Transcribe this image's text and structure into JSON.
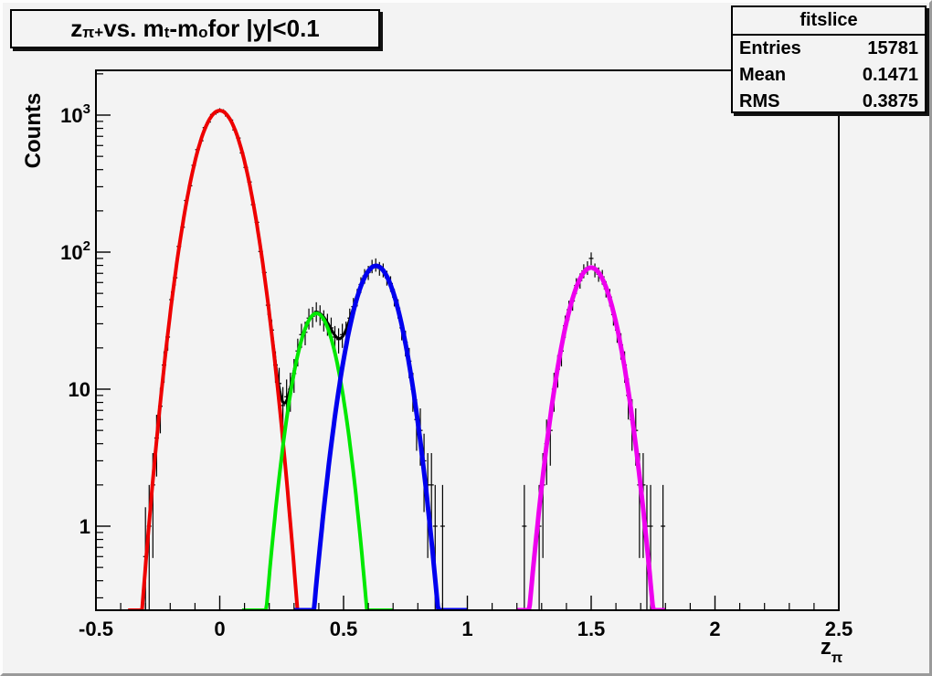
{
  "canvas": {
    "background": "#f3f3f3",
    "bevel_light": "#fdfdfd",
    "bevel_dark": "#9a9a9a"
  },
  "title": {
    "segments": [
      {
        "t": "z"
      },
      {
        "sub": "π+"
      },
      {
        "t": " vs. m"
      },
      {
        "sub": "t"
      },
      {
        "t": "-m"
      },
      {
        "sub": "o"
      },
      {
        "t": " for |y|<0.1"
      }
    ]
  },
  "stats": {
    "title": "fitslice",
    "rows": [
      {
        "label": "Entries",
        "value": "15781"
      },
      {
        "label": "Mean",
        "value": "0.1471"
      },
      {
        "label": "RMS",
        "value": "0.3875"
      }
    ]
  },
  "chart_data": {
    "type": "bar",
    "subtype": "histogram-log-y-with-gaussian-fits",
    "title": "z_{π+} vs. m_t-m_o for |y|<0.1",
    "xlabel_base": "z",
    "xlabel_sub": "π",
    "ylabel": "Counts",
    "x_axis": {
      "range": [
        -0.5,
        2.5
      ],
      "major_ticks": [
        -0.5,
        0,
        0.5,
        1,
        1.5,
        2,
        2.5
      ],
      "tick_labels": [
        "-0.5",
        "0",
        "0.5",
        "1",
        "1.5",
        "2",
        "2.5"
      ],
      "minor_step": 0.1
    },
    "y_axis": {
      "scale": "log",
      "range": [
        0.243,
        2123
      ],
      "major_ticks": [
        1,
        10,
        100,
        1000
      ],
      "tick_labels": [
        {
          "base": "1",
          "exp": ""
        },
        {
          "base": "10",
          "exp": ""
        },
        {
          "base": "10",
          "exp": "2"
        },
        {
          "base": "10",
          "exp": "3"
        }
      ]
    },
    "grid": false,
    "legend": false,
    "bin_width": 0.015,
    "fits": [
      {
        "name": "red-gaussian",
        "color": "#ee0000",
        "amp_log10": 3.033,
        "mean": 0.0,
        "curvature": 37.0,
        "range": [
          -0.37,
          0.33
        ],
        "width": 4
      },
      {
        "name": "green-gaussian",
        "color": "#00e800",
        "amp_log10": 1.553,
        "mean": 0.391,
        "curvature": 52.5,
        "range": [
          0.09,
          0.7
        ],
        "width": 4
      },
      {
        "name": "blue-gaussian",
        "color": "#0000ee",
        "amp_log10": 1.9,
        "mean": 0.631,
        "curvature": 40.0,
        "range": [
          0.3,
          1.0
        ],
        "width": 5
      },
      {
        "name": "magenta-gaussian",
        "color": "#ee00ee",
        "amp_log10": 1.887,
        "mean": 1.5,
        "curvature": 40.0,
        "range": [
          1.2,
          1.8
        ],
        "width": 5
      }
    ],
    "sum_fit": {
      "name": "total-fit",
      "color": "#000000",
      "range": [
        -0.45,
        2.45
      ],
      "width": 3
    },
    "data_points": [
      [
        -0.3,
        0.6
      ],
      [
        -0.285,
        1.0
      ],
      [
        -0.27,
        2.0
      ],
      [
        -0.255,
        4.4
      ],
      [
        -0.24,
        7.5
      ],
      [
        -0.225,
        15
      ],
      [
        -0.21,
        24
      ],
      [
        -0.195,
        45
      ],
      [
        -0.18,
        65
      ],
      [
        -0.165,
        110
      ],
      [
        -0.15,
        152
      ],
      [
        -0.135,
        238
      ],
      [
        -0.12,
        305
      ],
      [
        -0.105,
        430
      ],
      [
        -0.09,
        560
      ],
      [
        -0.075,
        650
      ],
      [
        -0.06,
        810
      ],
      [
        -0.045,
        890
      ],
      [
        -0.03,
        1010
      ],
      [
        -0.015,
        1040
      ],
      [
        0.0,
        1090
      ],
      [
        0.015,
        1070
      ],
      [
        0.03,
        985
      ],
      [
        0.045,
        920
      ],
      [
        0.06,
        780
      ],
      [
        0.075,
        680
      ],
      [
        0.09,
        530
      ],
      [
        0.105,
        415
      ],
      [
        0.12,
        325
      ],
      [
        0.135,
        222
      ],
      [
        0.15,
        165
      ],
      [
        0.165,
        101
      ],
      [
        0.18,
        71
      ],
      [
        0.195,
        41
      ],
      [
        0.21,
        27
      ],
      [
        0.225,
        15
      ],
      [
        0.24,
        11
      ],
      [
        0.255,
        7.6
      ],
      [
        0.27,
        8.8
      ],
      [
        0.285,
        10
      ],
      [
        0.3,
        13
      ],
      [
        0.315,
        19
      ],
      [
        0.33,
        25
      ],
      [
        0.345,
        26
      ],
      [
        0.36,
        33
      ],
      [
        0.375,
        34
      ],
      [
        0.39,
        37
      ],
      [
        0.405,
        35
      ],
      [
        0.42,
        32
      ],
      [
        0.435,
        30
      ],
      [
        0.45,
        28
      ],
      [
        0.465,
        24
      ],
      [
        0.48,
        23
      ],
      [
        0.495,
        25
      ],
      [
        0.51,
        26
      ],
      [
        0.525,
        33
      ],
      [
        0.54,
        40
      ],
      [
        0.555,
        47
      ],
      [
        0.57,
        58
      ],
      [
        0.585,
        67
      ],
      [
        0.6,
        71
      ],
      [
        0.615,
        79
      ],
      [
        0.63,
        81
      ],
      [
        0.645,
        76
      ],
      [
        0.66,
        74
      ],
      [
        0.675,
        65
      ],
      [
        0.69,
        59
      ],
      [
        0.705,
        47
      ],
      [
        0.72,
        39
      ],
      [
        0.735,
        28
      ],
      [
        0.75,
        22
      ],
      [
        0.765,
        16
      ],
      [
        0.78,
        10
      ],
      [
        0.795,
        6
      ],
      [
        0.81,
        5
      ],
      [
        0.825,
        3
      ],
      [
        0.84,
        2
      ],
      [
        0.855,
        2
      ],
      [
        0.87,
        1
      ],
      [
        0.9,
        1
      ],
      [
        1.23,
        1
      ],
      [
        1.29,
        1
      ],
      [
        1.305,
        2
      ],
      [
        1.32,
        4
      ],
      [
        1.335,
        5
      ],
      [
        1.35,
        10
      ],
      [
        1.365,
        14
      ],
      [
        1.38,
        19
      ],
      [
        1.395,
        29
      ],
      [
        1.41,
        38
      ],
      [
        1.425,
        44
      ],
      [
        1.44,
        57
      ],
      [
        1.455,
        62
      ],
      [
        1.47,
        73
      ],
      [
        1.485,
        77
      ],
      [
        1.5,
        90
      ],
      [
        1.515,
        74
      ],
      [
        1.53,
        69
      ],
      [
        1.545,
        66
      ],
      [
        1.56,
        54
      ],
      [
        1.575,
        47
      ],
      [
        1.59,
        35
      ],
      [
        1.605,
        27
      ],
      [
        1.62,
        21
      ],
      [
        1.635,
        15
      ],
      [
        1.65,
        9
      ],
      [
        1.665,
        6
      ],
      [
        1.68,
        5
      ],
      [
        1.695,
        2
      ],
      [
        1.71,
        2
      ],
      [
        1.725,
        1
      ],
      [
        1.74,
        1
      ],
      [
        1.79,
        1
      ]
    ]
  }
}
